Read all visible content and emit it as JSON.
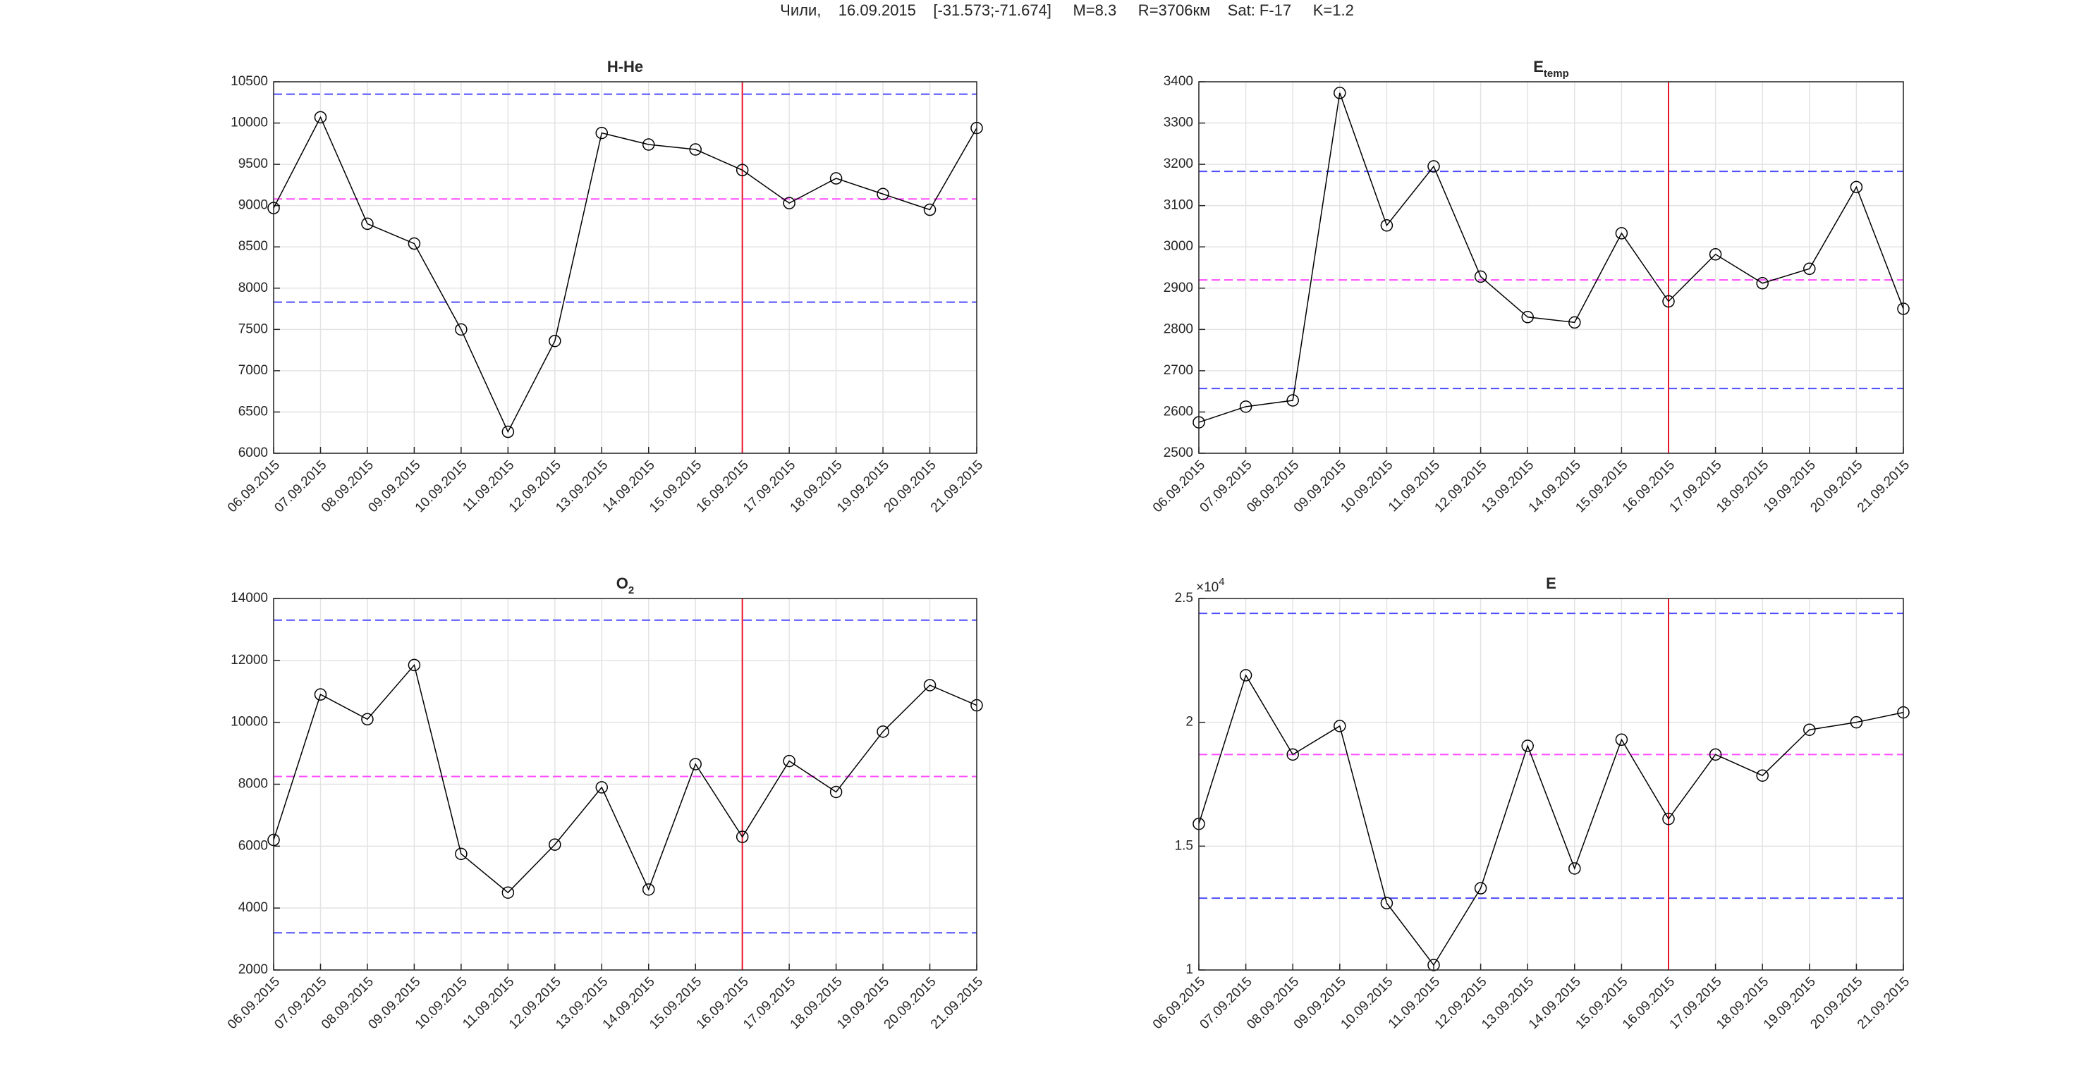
{
  "header": {
    "title": "Чили,    16.09.2015    [-31.573;-71.674]     M=8.3     R=3706км    Sat: F-17     K=1.2"
  },
  "chart_data": [
    {
      "type": "line",
      "title": "H-He",
      "categories": [
        "06.09.2015",
        "07.09.2015",
        "08.09.2015",
        "09.09.2015",
        "10.09.2015",
        "11.09.2015",
        "12.09.2015",
        "13.09.2015",
        "14.09.2015",
        "15.09.2015",
        "16.09.2015",
        "17.09.2015",
        "18.09.2015",
        "19.09.2015",
        "20.09.2015",
        "21.09.2015"
      ],
      "values": [
        8970,
        10070,
        8780,
        8540,
        7500,
        6260,
        7360,
        9880,
        9740,
        9680,
        9430,
        9030,
        9330,
        9140,
        8950,
        9940
      ],
      "color": "#000000",
      "ylim": [
        6000,
        10500
      ],
      "yticks": [
        6000,
        6500,
        7000,
        7500,
        8000,
        8500,
        9000,
        9500,
        10000,
        10500
      ],
      "hlines": [
        {
          "value": 10350,
          "color": "#4d4dff"
        },
        {
          "value": 9080,
          "color": "#ff4dff"
        },
        {
          "value": 7830,
          "color": "#4d4dff"
        }
      ],
      "vline": "16.09.2015",
      "vline_color": "#e8132a",
      "grid": true
    },
    {
      "type": "line",
      "title": "E",
      "title_sub": "temp",
      "categories": [
        "06.09.2015",
        "07.09.2015",
        "08.09.2015",
        "09.09.2015",
        "10.09.2015",
        "11.09.2015",
        "12.09.2015",
        "13.09.2015",
        "14.09.2015",
        "15.09.2015",
        "16.09.2015",
        "17.09.2015",
        "18.09.2015",
        "19.09.2015",
        "20.09.2015",
        "21.09.2015"
      ],
      "values": [
        2575,
        2613,
        2628,
        3373,
        3052,
        3195,
        2928,
        2830,
        2817,
        3033,
        2868,
        2982,
        2912,
        2947,
        3145,
        2850
      ],
      "color": "#000000",
      "ylim": [
        2500,
        3400
      ],
      "yticks": [
        2500,
        2600,
        2700,
        2800,
        2900,
        3000,
        3100,
        3200,
        3300,
        3400
      ],
      "hlines": [
        {
          "value": 3183,
          "color": "#4d4dff"
        },
        {
          "value": 2920,
          "color": "#ff4dff"
        },
        {
          "value": 2657,
          "color": "#4d4dff"
        }
      ],
      "vline": "16.09.2015",
      "vline_color": "#e8132a",
      "grid": true
    },
    {
      "type": "line",
      "title": "O",
      "title_sub": "2",
      "categories": [
        "06.09.2015",
        "07.09.2015",
        "08.09.2015",
        "09.09.2015",
        "10.09.2015",
        "11.09.2015",
        "12.09.2015",
        "13.09.2015",
        "14.09.2015",
        "15.09.2015",
        "16.09.2015",
        "17.09.2015",
        "18.09.2015",
        "19.09.2015",
        "20.09.2015",
        "21.09.2015"
      ],
      "values": [
        6200,
        10900,
        10100,
        11850,
        5750,
        4500,
        6050,
        7900,
        4600,
        8650,
        6300,
        8750,
        7750,
        9700,
        11200,
        10550
      ],
      "color": "#000000",
      "ylim": [
        2000,
        14000
      ],
      "yticks": [
        2000,
        4000,
        6000,
        8000,
        10000,
        12000,
        14000
      ],
      "hlines": [
        {
          "value": 13300,
          "color": "#4d4dff"
        },
        {
          "value": 8250,
          "color": "#ff4dff"
        },
        {
          "value": 3200,
          "color": "#4d4dff"
        }
      ],
      "vline": "16.09.2015",
      "vline_color": "#e8132a",
      "grid": true
    },
    {
      "type": "line",
      "title": "E",
      "categories": [
        "06.09.2015",
        "07.09.2015",
        "08.09.2015",
        "09.09.2015",
        "10.09.2015",
        "11.09.2015",
        "12.09.2015",
        "13.09.2015",
        "14.09.2015",
        "15.09.2015",
        "16.09.2015",
        "17.09.2015",
        "18.09.2015",
        "19.09.2015",
        "20.09.2015",
        "21.09.2015"
      ],
      "values": [
        15900,
        21900,
        18700,
        19850,
        12700,
        10200,
        13300,
        19050,
        14100,
        19300,
        16100,
        18700,
        17850,
        19700,
        20000,
        20400
      ],
      "color": "#000000",
      "ylim": [
        10000,
        25000
      ],
      "yticks": [
        {
          "value": 10000,
          "label": "1"
        },
        {
          "value": 15000,
          "label": "1.5"
        },
        {
          "value": 20000,
          "label": "2"
        },
        {
          "value": 25000,
          "label": "2.5"
        }
      ],
      "y_multiplier": {
        "base": "×10",
        "exponent": "4"
      },
      "hlines": [
        {
          "value": 24400,
          "color": "#4d4dff"
        },
        {
          "value": 18700,
          "color": "#ff4dff"
        },
        {
          "value": 12900,
          "color": "#4d4dff"
        }
      ],
      "vline": "16.09.2015",
      "vline_color": "#e8132a",
      "grid": true
    }
  ]
}
